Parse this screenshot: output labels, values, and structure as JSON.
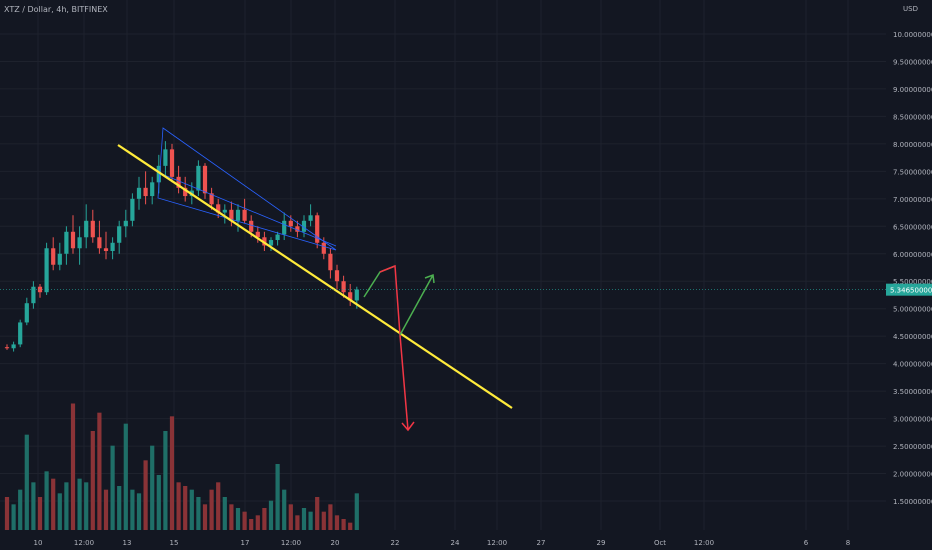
{
  "header": {
    "symbol": "XTZ / Dollar, 4h, BITFINEX",
    "currency": "USD"
  },
  "colors": {
    "background": "#131722",
    "grid": "#1e222d",
    "axis_text": "#b2b5be",
    "up": "#26a69a",
    "down": "#ef5350",
    "up_volume": "#1f6f68",
    "down_volume": "#8a3337",
    "trendline": "#ffeb3b",
    "pattern": "#2962ff",
    "arrow_up": "#4caf50",
    "arrow_down": "#f23645",
    "price_tag": "#26a69a"
  },
  "chart_data": {
    "type": "candlestick",
    "title": "XTZ / Dollar, 4h, BITFINEX",
    "ylabel": "USD",
    "ylim": [
      1.3,
      10.4
    ],
    "y_scale": "linear",
    "y_ticks": [
      "1.50000000",
      "2.00000000",
      "2.50000000",
      "3.00000000",
      "3.50000000",
      "4.00000000",
      "4.50000000",
      "5.00000000",
      "5.50000000",
      "6.00000000",
      "6.50000000",
      "7.00000000",
      "7.50000000",
      "8.00000000",
      "8.50000000",
      "9.00000000",
      "9.50000000",
      "10.0000000"
    ],
    "x_ticks": [
      "10",
      "12:00",
      "13",
      "15",
      "17",
      "12:00",
      "20",
      "22",
      "24",
      "12:00",
      "27",
      "29",
      "Oct",
      "12:00",
      "6",
      "8"
    ],
    "last_price": "5.34650000",
    "grid": true,
    "candles": [
      [
        4.3,
        4.35,
        4.25,
        4.28
      ],
      [
        4.28,
        4.4,
        4.22,
        4.35
      ],
      [
        4.35,
        4.8,
        4.3,
        4.75
      ],
      [
        4.75,
        5.2,
        4.7,
        5.1
      ],
      [
        5.1,
        5.5,
        5.0,
        5.4
      ],
      [
        5.4,
        5.45,
        5.2,
        5.3
      ],
      [
        5.3,
        6.2,
        5.25,
        6.1
      ],
      [
        6.1,
        6.3,
        5.7,
        5.8
      ],
      [
        5.8,
        6.2,
        5.7,
        6.0
      ],
      [
        6.0,
        6.5,
        5.8,
        6.4
      ],
      [
        6.4,
        6.7,
        6.0,
        6.1
      ],
      [
        6.1,
        6.5,
        5.8,
        6.3
      ],
      [
        6.3,
        6.9,
        6.1,
        6.6
      ],
      [
        6.6,
        6.8,
        6.2,
        6.3
      ],
      [
        6.3,
        6.6,
        6.0,
        6.1
      ],
      [
        6.1,
        6.4,
        5.9,
        6.05
      ],
      [
        6.05,
        6.3,
        5.9,
        6.2
      ],
      [
        6.2,
        6.6,
        6.0,
        6.5
      ],
      [
        6.5,
        6.8,
        6.3,
        6.6
      ],
      [
        6.6,
        7.1,
        6.5,
        7.0
      ],
      [
        7.0,
        7.4,
        6.8,
        7.2
      ],
      [
        7.2,
        7.5,
        6.9,
        7.05
      ],
      [
        7.05,
        7.4,
        6.9,
        7.3
      ],
      [
        7.3,
        7.8,
        7.1,
        7.6
      ],
      [
        7.6,
        8.05,
        7.4,
        7.9
      ],
      [
        7.9,
        8.0,
        7.3,
        7.4
      ],
      [
        7.4,
        7.6,
        7.1,
        7.2
      ],
      [
        7.2,
        7.4,
        6.95,
        7.05
      ],
      [
        7.05,
        7.3,
        6.9,
        7.15
      ],
      [
        7.15,
        7.7,
        7.05,
        7.6
      ],
      [
        7.6,
        7.65,
        7.0,
        7.1
      ],
      [
        7.1,
        7.2,
        6.8,
        6.9
      ],
      [
        6.9,
        7.0,
        6.65,
        6.75
      ],
      [
        6.75,
        6.9,
        6.55,
        6.8
      ],
      [
        6.8,
        6.95,
        6.5,
        6.6
      ],
      [
        6.6,
        6.9,
        6.4,
        6.8
      ],
      [
        6.8,
        7.0,
        6.55,
        6.6
      ],
      [
        6.6,
        6.7,
        6.3,
        6.4
      ],
      [
        6.4,
        6.5,
        6.2,
        6.3
      ],
      [
        6.3,
        6.4,
        6.05,
        6.15
      ],
      [
        6.15,
        6.3,
        6.05,
        6.25
      ],
      [
        6.25,
        6.4,
        6.15,
        6.35
      ],
      [
        6.35,
        6.75,
        6.25,
        6.6
      ],
      [
        6.6,
        6.7,
        6.4,
        6.5
      ],
      [
        6.5,
        6.6,
        6.3,
        6.4
      ],
      [
        6.4,
        6.7,
        6.3,
        6.6
      ],
      [
        6.6,
        6.9,
        6.5,
        6.7
      ],
      [
        6.7,
        6.75,
        6.1,
        6.2
      ],
      [
        6.2,
        6.3,
        5.9,
        6.0
      ],
      [
        6.0,
        6.1,
        5.55,
        5.7
      ],
      [
        5.7,
        5.8,
        5.35,
        5.5
      ],
      [
        5.5,
        5.6,
        5.2,
        5.3
      ],
      [
        5.3,
        5.45,
        5.05,
        5.15
      ],
      [
        5.15,
        5.4,
        5.0,
        5.35
      ]
    ],
    "volumes": [
      0.9,
      0.7,
      1.1,
      2.6,
      1.3,
      0.9,
      1.6,
      1.4,
      1.0,
      1.3,
      3.45,
      1.4,
      1.3,
      2.7,
      3.2,
      1.1,
      2.3,
      1.2,
      2.9,
      1.1,
      1.0,
      1.9,
      2.3,
      1.5,
      2.7,
      3.1,
      1.3,
      1.2,
      1.1,
      0.9,
      0.7,
      1.1,
      1.3,
      0.9,
      0.7,
      0.6,
      0.5,
      0.3,
      0.4,
      0.6,
      0.8,
      1.8,
      1.1,
      0.7,
      0.4,
      0.6,
      0.5,
      0.9,
      0.5,
      0.7,
      0.4,
      0.3,
      0.2,
      1.0
    ],
    "volume_ylim": [
      0,
      3.6
    ]
  }
}
